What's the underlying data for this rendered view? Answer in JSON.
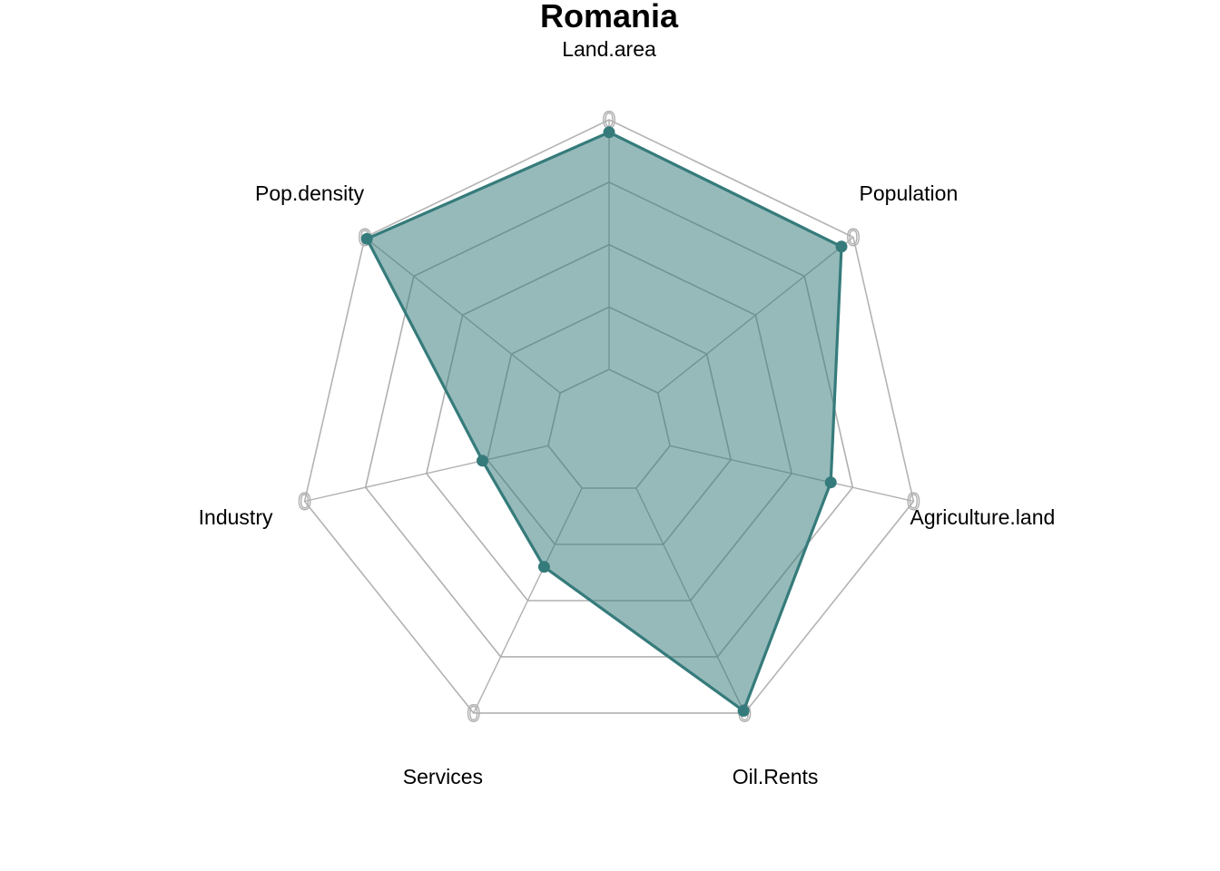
{
  "chart_data": {
    "type": "radar",
    "title": "Romania",
    "axes": [
      "Land.area",
      "Population",
      "Agriculture.land",
      "Oil.Rents",
      "Services",
      "Industry",
      "Pop.density"
    ],
    "series": [
      {
        "name": "Romania",
        "values": [
          0.95,
          0.94,
          0.66,
          0.99,
          0.35,
          0.27,
          0.99
        ],
        "color": "#367B7B",
        "fill": "#367B7B",
        "fill_opacity": 0.52
      }
    ],
    "range": [
      0,
      1
    ],
    "grid_levels": 5,
    "tick_label": "0",
    "grid_color": "#b0b0b0"
  }
}
